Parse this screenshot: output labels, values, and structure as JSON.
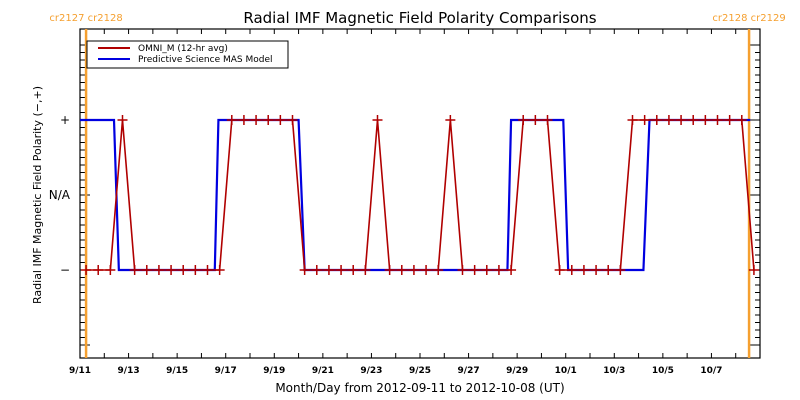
{
  "chart_data": {
    "type": "line",
    "title": "Radial IMF Magnetic Field Polarity Comparisons",
    "xlabel": "Month/Day from 2012-09-11 to 2012-10-08 (UT)",
    "ylabel": "Radial IMF Magnetic Field Polarity (−,+)",
    "x_unit": "days since 2012-09-11 00:00 UT",
    "xlim": [
      0,
      28
    ],
    "ylim": [
      -2,
      2
    ],
    "y_levels": [
      {
        "value": 1,
        "label": "+"
      },
      {
        "value": 0,
        "label": "N/A"
      },
      {
        "value": -1,
        "label": "−"
      }
    ],
    "x_tick_labels": [
      {
        "day": 0,
        "label": "9/11"
      },
      {
        "day": 2,
        "label": "9/13"
      },
      {
        "day": 4,
        "label": "9/15"
      },
      {
        "day": 6,
        "label": "9/17"
      },
      {
        "day": 8,
        "label": "9/19"
      },
      {
        "day": 10,
        "label": "9/21"
      },
      {
        "day": 12,
        "label": "9/23"
      },
      {
        "day": 14,
        "label": "9/25"
      },
      {
        "day": 16,
        "label": "9/27"
      },
      {
        "day": 18,
        "label": "9/29"
      },
      {
        "day": 20,
        "label": "10/1"
      },
      {
        "day": 22,
        "label": "10/3"
      },
      {
        "day": 24,
        "label": "10/5"
      },
      {
        "day": 26,
        "label": "10/7"
      }
    ],
    "carrington_markers": [
      {
        "day": 0.25,
        "label_left": "cr2127",
        "label_right": "cr2128",
        "color": "#f5a030"
      },
      {
        "day": 27.55,
        "label_left": "cr2128",
        "label_right": "cr2129",
        "color": "#f5a030"
      }
    ],
    "legend": {
      "placement": "top-left",
      "entries": [
        {
          "name": "OMNI_M (12-hr avg)",
          "color": "#b00000"
        },
        {
          "name": "Predictive Science MAS Model",
          "color": "#0000e0"
        }
      ]
    },
    "series": [
      {
        "name": "OMNI_M (12-hr avg)",
        "color": "#b00000",
        "marker": "+",
        "start_day": 0.25,
        "step_days": 0.5,
        "values": [
          -1,
          -1,
          -1,
          1,
          -1,
          -1,
          -1,
          -1,
          -1,
          -1,
          -1,
          -1,
          1,
          1,
          1,
          1,
          1,
          1,
          -1,
          -1,
          -1,
          -1,
          -1,
          -1,
          1,
          -1,
          -1,
          -1,
          -1,
          -1,
          1,
          -1,
          -1,
          -1,
          -1,
          -1,
          1,
          1,
          1,
          -1,
          -1,
          -1,
          -1,
          -1,
          -1,
          1,
          1,
          1,
          1,
          1,
          1,
          1,
          1,
          1,
          1,
          -1
        ]
      },
      {
        "name": "Predictive Science MAS Model",
        "color": "#0000e0",
        "segments": [
          {
            "from": 0.0,
            "to": 1.4,
            "value": 1
          },
          {
            "from": 1.6,
            "to": 5.55,
            "value": -1
          },
          {
            "from": 5.7,
            "to": 9.0,
            "value": 1
          },
          {
            "from": 9.25,
            "to": 17.6,
            "value": -1
          },
          {
            "from": 17.75,
            "to": 19.9,
            "value": 1
          },
          {
            "from": 20.1,
            "to": 23.2,
            "value": -1
          },
          {
            "from": 23.45,
            "to": 27.6,
            "value": 1
          }
        ]
      }
    ]
  }
}
